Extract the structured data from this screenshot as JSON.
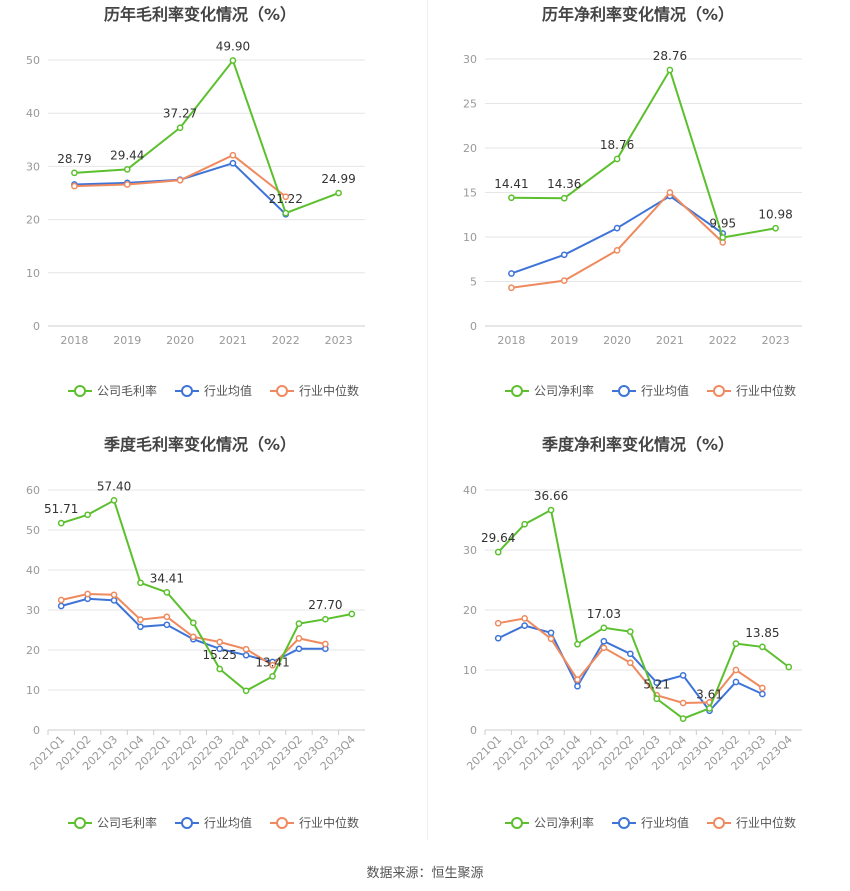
{
  "colors": {
    "company": "#5cc02e",
    "industry_avg": "#3e74d8",
    "industry_median": "#ef8a5e",
    "grid": "#e6e6e6",
    "axis_text": "#999999",
    "title_text": "#444444",
    "label_text": "#333333"
  },
  "source": "数据来源：恒生聚源",
  "chart_data": [
    {
      "type": "line",
      "title": "历年毛利率变化情况（%）",
      "categories": [
        "2018",
        "2019",
        "2020",
        "2021",
        "2022",
        "2023"
      ],
      "ylim": [
        0,
        50
      ],
      "yticks": [
        0,
        10,
        20,
        30,
        40,
        50
      ],
      "grid": true,
      "legend_position": "bottom",
      "series": [
        {
          "name": "公司毛利率",
          "key": "company",
          "values": [
            28.79,
            29.44,
            37.27,
            49.9,
            21.22,
            24.99
          ]
        },
        {
          "name": "行业均值",
          "key": "industry_avg",
          "values": [
            26.6,
            26.9,
            27.5,
            30.6,
            21.0,
            null
          ]
        },
        {
          "name": "行业中位数",
          "key": "industry_median",
          "values": [
            26.3,
            26.6,
            27.4,
            32.1,
            24.3,
            null
          ]
        }
      ],
      "data_labels": [
        {
          "index": 0,
          "text": "28.79"
        },
        {
          "index": 1,
          "text": "29.44"
        },
        {
          "index": 2,
          "text": "37.27"
        },
        {
          "index": 3,
          "text": "49.90"
        },
        {
          "index": 4,
          "text": "21.22"
        },
        {
          "index": 5,
          "text": "24.99"
        }
      ]
    },
    {
      "type": "line",
      "title": "历年净利率变化情况（%）",
      "categories": [
        "2018",
        "2019",
        "2020",
        "2021",
        "2022",
        "2023"
      ],
      "ylim": [
        0,
        30
      ],
      "yticks": [
        0,
        5,
        10,
        15,
        20,
        25,
        30
      ],
      "grid": true,
      "legend_position": "bottom",
      "series": [
        {
          "name": "公司净利率",
          "key": "company",
          "values": [
            14.41,
            14.36,
            18.76,
            28.76,
            9.95,
            10.98
          ]
        },
        {
          "name": "行业均值",
          "key": "industry_avg",
          "values": [
            5.9,
            8.0,
            11.0,
            14.6,
            10.4,
            null
          ]
        },
        {
          "name": "行业中位数",
          "key": "industry_median",
          "values": [
            4.3,
            5.1,
            8.5,
            15.0,
            9.4,
            null
          ]
        }
      ],
      "data_labels": [
        {
          "index": 0,
          "text": "14.41"
        },
        {
          "index": 1,
          "text": "14.36"
        },
        {
          "index": 2,
          "text": "18.76"
        },
        {
          "index": 3,
          "text": "28.76"
        },
        {
          "index": 4,
          "text": "9.95"
        },
        {
          "index": 5,
          "text": "10.98"
        }
      ]
    },
    {
      "type": "line",
      "title": "季度毛利率变化情况（%）",
      "categories": [
        "2021Q1",
        "2021Q2",
        "2021Q3",
        "2021Q4",
        "2022Q1",
        "2022Q2",
        "2022Q3",
        "2022Q4",
        "2023Q1",
        "2023Q2",
        "2023Q3",
        "2023Q4"
      ],
      "ylim": [
        0,
        60
      ],
      "yticks": [
        0,
        10,
        20,
        30,
        40,
        50,
        60
      ],
      "grid": true,
      "legend_position": "bottom",
      "series": [
        {
          "name": "公司毛利率",
          "key": "company",
          "values": [
            51.71,
            53.8,
            57.4,
            36.8,
            34.41,
            26.8,
            15.25,
            9.8,
            13.41,
            26.6,
            27.7,
            29.0
          ]
        },
        {
          "name": "行业均值",
          "key": "industry_avg",
          "values": [
            31.0,
            32.8,
            32.4,
            25.8,
            26.3,
            22.7,
            20.3,
            18.7,
            17.0,
            20.3,
            20.3,
            null
          ]
        },
        {
          "name": "行业中位数",
          "key": "industry_median",
          "values": [
            32.5,
            34.0,
            33.8,
            27.6,
            28.3,
            23.3,
            22.0,
            20.2,
            16.2,
            22.9,
            21.5,
            null
          ]
        }
      ],
      "data_labels": [
        {
          "index": 0,
          "text": "51.71"
        },
        {
          "index": 2,
          "text": "57.40"
        },
        {
          "index": 4,
          "text": "34.41"
        },
        {
          "index": 6,
          "text": "15.25"
        },
        {
          "index": 8,
          "text": "13.41"
        },
        {
          "index": 10,
          "text": "27.70"
        }
      ]
    },
    {
      "type": "line",
      "title": "季度净利率变化情况（%）",
      "categories": [
        "2021Q1",
        "2021Q2",
        "2021Q3",
        "2021Q4",
        "2022Q1",
        "2022Q2",
        "2022Q3",
        "2022Q4",
        "2023Q1",
        "2023Q2",
        "2023Q3",
        "2023Q4"
      ],
      "ylim": [
        0,
        40
      ],
      "yticks": [
        0,
        10,
        20,
        30,
        40
      ],
      "grid": true,
      "legend_position": "bottom",
      "series": [
        {
          "name": "公司净利率",
          "key": "company",
          "values": [
            29.64,
            34.3,
            36.66,
            14.3,
            17.03,
            16.4,
            5.21,
            1.9,
            3.61,
            14.4,
            13.85,
            10.5
          ]
        },
        {
          "name": "行业均值",
          "key": "industry_avg",
          "values": [
            15.3,
            17.4,
            16.2,
            7.3,
            14.8,
            12.7,
            7.9,
            9.1,
            3.2,
            8.0,
            6.0,
            null
          ]
        },
        {
          "name": "行业中位数",
          "key": "industry_median",
          "values": [
            17.8,
            18.6,
            15.2,
            8.4,
            13.7,
            11.2,
            5.8,
            4.5,
            4.6,
            10.0,
            7.0,
            null
          ]
        }
      ],
      "data_labels": [
        {
          "index": 0,
          "text": "29.64"
        },
        {
          "index": 2,
          "text": "36.66"
        },
        {
          "index": 4,
          "text": "17.03"
        },
        {
          "index": 6,
          "text": "5.21"
        },
        {
          "index": 8,
          "text": "3.61"
        },
        {
          "index": 10,
          "text": "13.85"
        }
      ]
    }
  ]
}
